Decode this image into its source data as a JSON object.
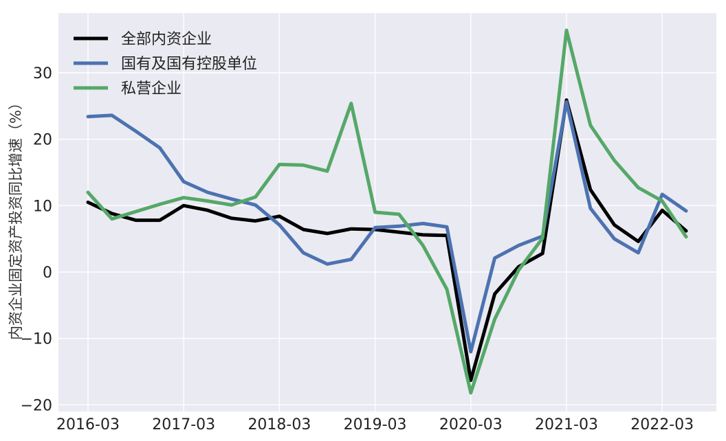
{
  "chart_data": {
    "type": "line",
    "title": "",
    "xlabel": "",
    "ylabel": "内资企业固定资产投资同比增速（%）",
    "x": [
      "2016-03",
      "2016-06",
      "2016-09",
      "2016-12",
      "2017-03",
      "2017-06",
      "2017-09",
      "2017-12",
      "2018-03",
      "2018-06",
      "2018-09",
      "2018-12",
      "2019-03",
      "2019-06",
      "2019-09",
      "2019-12",
      "2020-03",
      "2020-06",
      "2020-09",
      "2020-12",
      "2021-03",
      "2021-06",
      "2021-09",
      "2021-12",
      "2022-03",
      "2022-06"
    ],
    "xticks": [
      "2016-03",
      "2017-03",
      "2018-03",
      "2019-03",
      "2020-03",
      "2021-03",
      "2022-03"
    ],
    "ylim": [
      -21,
      39
    ],
    "yticks": [
      -20,
      -10,
      0,
      10,
      20,
      30
    ],
    "grid": true,
    "legend_position": "top-left",
    "series": [
      {
        "name": "全部内资企业",
        "color": "#000000",
        "values": [
          10.5,
          8.8,
          7.8,
          7.8,
          10.0,
          9.3,
          8.1,
          7.7,
          8.4,
          6.4,
          5.8,
          6.5,
          6.4,
          6.0,
          5.6,
          5.5,
          -16.3,
          -3.3,
          0.8,
          2.8,
          25.9,
          12.4,
          7.1,
          4.6,
          9.3,
          6.2
        ]
      },
      {
        "name": "国有及国有控股单位",
        "color": "#4c72b0",
        "values": [
          23.4,
          23.6,
          21.2,
          18.7,
          13.6,
          12.0,
          11.0,
          10.1,
          7.1,
          2.9,
          1.2,
          1.9,
          6.7,
          6.9,
          7.3,
          6.8,
          -12.0,
          2.1,
          4.0,
          5.4,
          25.6,
          9.6,
          5.0,
          2.9,
          11.7,
          9.2
        ]
      },
      {
        "name": "私营企业",
        "color": "#55a868",
        "values": [
          12.0,
          8.0,
          9.1,
          10.2,
          11.2,
          10.7,
          10.1,
          11.3,
          16.2,
          16.1,
          15.2,
          25.4,
          9.0,
          8.7,
          4.0,
          -2.6,
          -18.2,
          -7.1,
          0.3,
          5.1,
          36.4,
          22.1,
          16.8,
          12.7,
          10.7,
          5.3
        ]
      }
    ]
  }
}
